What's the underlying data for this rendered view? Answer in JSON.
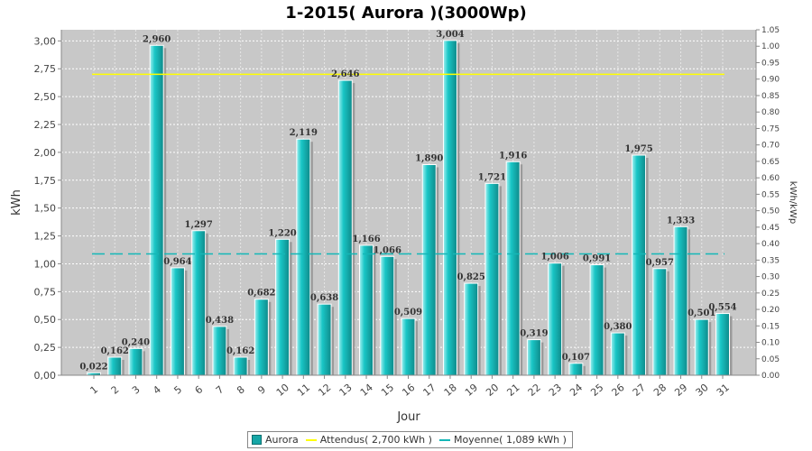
{
  "colors": {
    "plot_bg": "#c8c8c8",
    "grid": "#ffffff",
    "bar": "#19c6c6",
    "bar_dark": "#0e8a8a",
    "bar_light": "#9ff0f0",
    "expected_line": "#ffff00",
    "average_line": "#14b7b7"
  },
  "chart_data": {
    "type": "bar",
    "title": "1-2015( Aurora )(3000Wp)",
    "xlabel": "Jour",
    "ylabel": "kWh",
    "y2label": "kWh/kWp",
    "ylim": [
      0,
      3.1
    ],
    "y2lim": [
      0,
      1.05
    ],
    "grid": true,
    "categories": [
      "1",
      "2",
      "3",
      "4",
      "5",
      "6",
      "7",
      "8",
      "9",
      "10",
      "11",
      "12",
      "13",
      "14",
      "15",
      "16",
      "17",
      "18",
      "19",
      "20",
      "21",
      "22",
      "23",
      "24",
      "25",
      "26",
      "27",
      "28",
      "29",
      "30",
      "31"
    ],
    "series": [
      {
        "name": "Aurora",
        "values": [
          0.022,
          0.162,
          0.24,
          2.96,
          0.964,
          1.297,
          0.438,
          0.162,
          0.682,
          1.22,
          2.119,
          0.638,
          2.646,
          1.166,
          1.066,
          0.509,
          1.89,
          3.004,
          0.825,
          1.721,
          1.916,
          0.319,
          1.006,
          0.107,
          0.991,
          0.38,
          1.975,
          0.957,
          1.333,
          0.501,
          0.554
        ],
        "labels": [
          "0,022",
          "0,162",
          "0,240",
          "2,960",
          "0,964",
          "1,297",
          "0,438",
          "0,162",
          "0,682",
          "1,220",
          "2,119",
          "0,638",
          "2,646",
          "1,166",
          "1,066",
          "0,509",
          "1,890",
          "3,004",
          "0,825",
          "1,721",
          "1,916",
          "0,319",
          "1,006",
          "0,107",
          "0,991",
          "0,380",
          "1,975",
          "0,957",
          "1,333",
          "0,501",
          "0,554"
        ]
      }
    ],
    "reference_lines": [
      {
        "name": "Attendus( 2,700 kWh )",
        "value": 2.7
      },
      {
        "name": "Moyenne( 1,089 kWh )",
        "value": 1.089
      }
    ],
    "y_ticks": [
      "0,00",
      "0,25",
      "0,50",
      "0,75",
      "1,00",
      "1,25",
      "1,50",
      "1,75",
      "2,00",
      "2,25",
      "2,50",
      "2,75",
      "3,00"
    ],
    "y2_ticks": [
      "0.00",
      "0.05",
      "0.10",
      "0.15",
      "0.20",
      "0.25",
      "0.30",
      "0.35",
      "0.40",
      "0.45",
      "0.50",
      "0.55",
      "0.60",
      "0.65",
      "0.70",
      "0.75",
      "0.80",
      "0.85",
      "0.90",
      "0.95",
      "1.00",
      "1.05"
    ],
    "legend": {
      "position": "bottom",
      "items": [
        "Aurora",
        "Attendus( 2,700 kWh )",
        "Moyenne( 1,089 kWh )"
      ]
    }
  }
}
